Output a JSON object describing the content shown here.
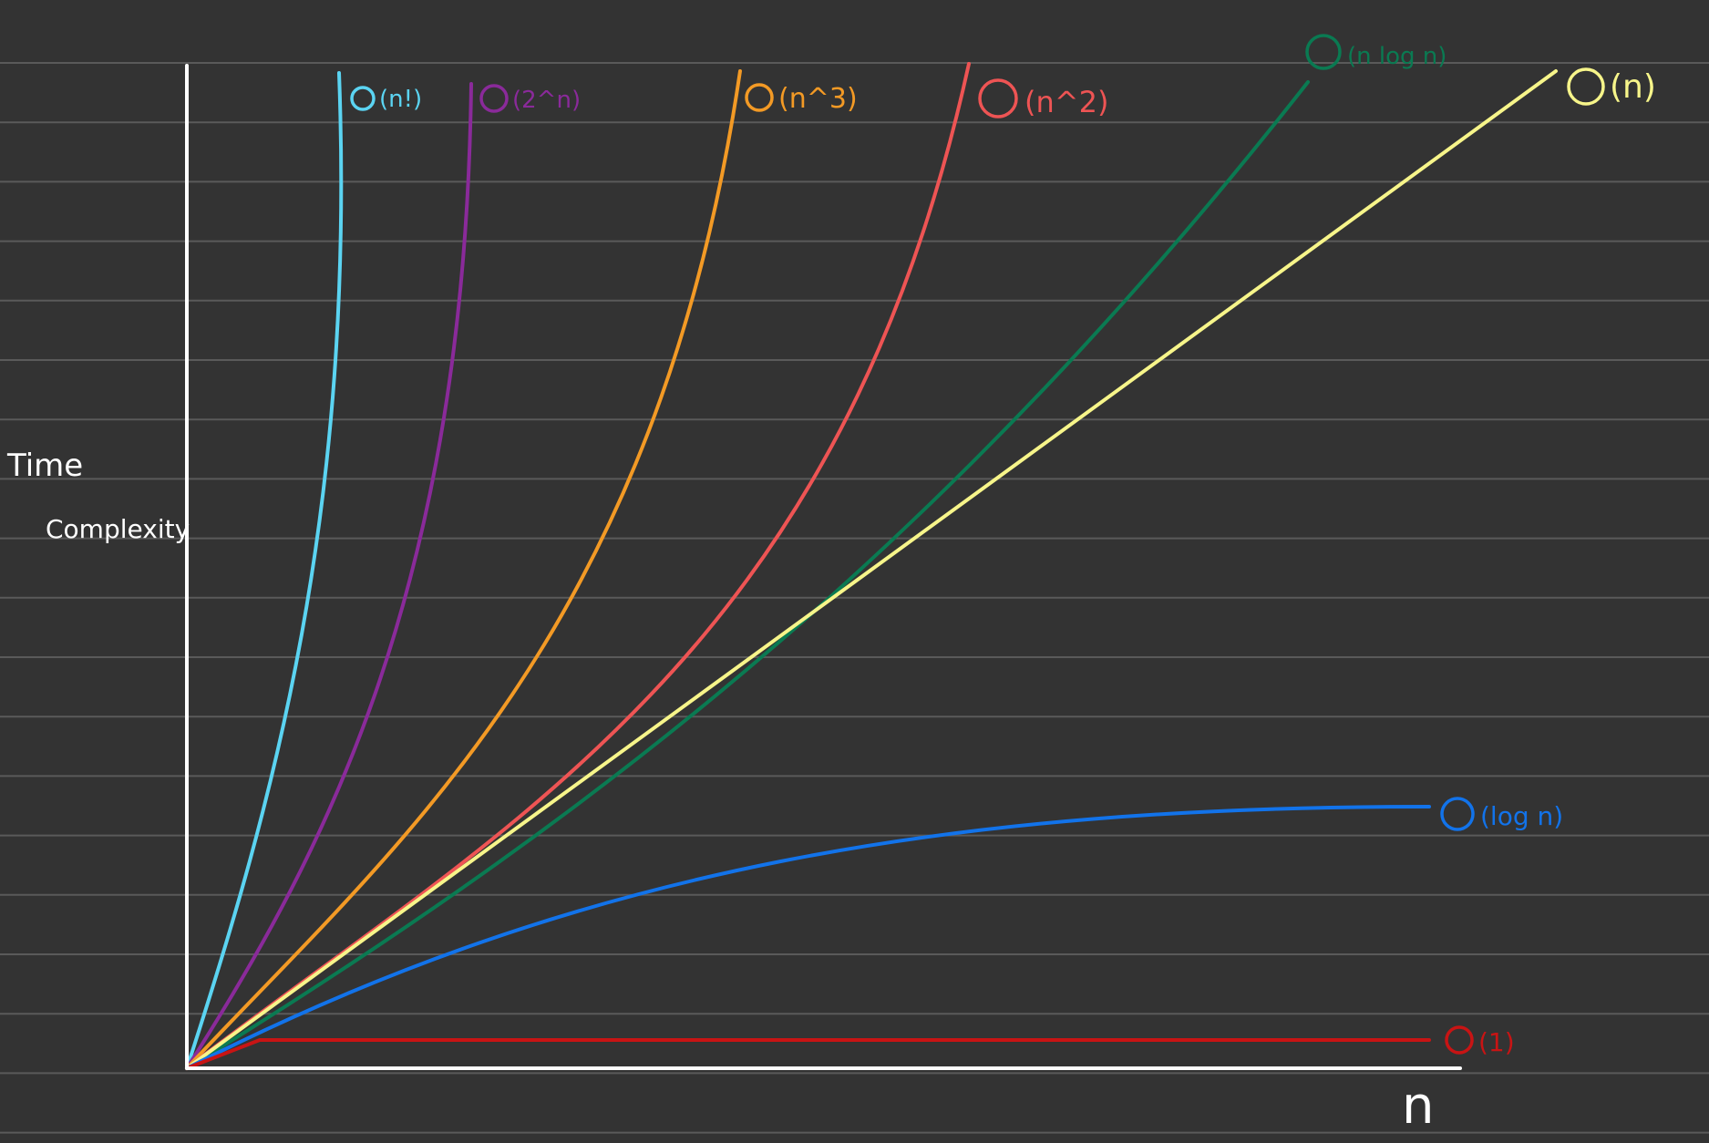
{
  "chart_data": {
    "type": "line",
    "ylabel_line1": "Time",
    "ylabel_line2": "Complexity",
    "xlabel": "n",
    "grid": "horizontal notebook lines",
    "background": "#333333",
    "axis_color": "#ffffff",
    "series": [
      {
        "key": "n_factorial",
        "name": "O(n!)",
        "color": "#5bd4f2"
      },
      {
        "key": "two_pow_n",
        "name": "O(2^n)",
        "color": "#8a2a9a"
      },
      {
        "key": "n_cubed",
        "name": "O(n^3)",
        "color": "#f39a25"
      },
      {
        "key": "n_squared",
        "name": "O(n^2)",
        "color": "#ee5454"
      },
      {
        "key": "n_log_n",
        "name": "O(n log n)",
        "color": "#0a7a52"
      },
      {
        "key": "n",
        "name": "O(n)",
        "color": "#f7f58a"
      },
      {
        "key": "log_n",
        "name": "O(log n)",
        "color": "#1273ea"
      },
      {
        "key": "constant",
        "name": "O(1)",
        "color": "#c81414"
      }
    ]
  }
}
